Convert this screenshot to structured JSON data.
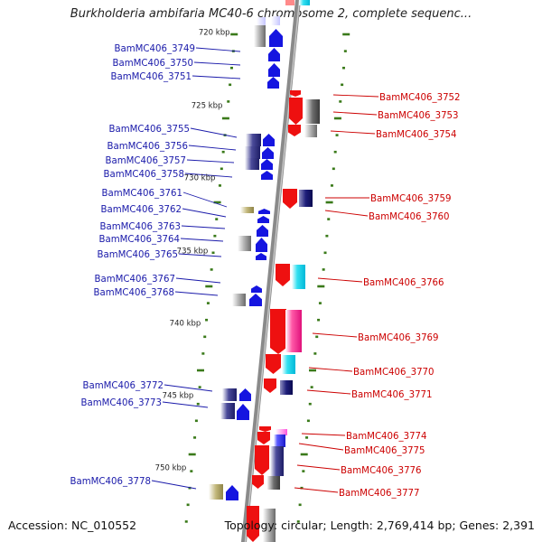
{
  "title": "Burkholderia ambifaria MC40-6 chromosome 2, complete sequenc...",
  "footer": {
    "accession": "Accession: NC_010552",
    "summary": "Topology: circular; Length: 2,769,414 bp; Genes: 2,391"
  },
  "colors": {
    "left_strand_label": "#1a1aaa",
    "right_strand_label": "#cc0000",
    "tick": "#3a7a1a",
    "backbone": "#8a8a8a"
  },
  "scale_labels": [
    "720 kbp",
    "725 kbp",
    "730 kbp",
    "735 kbp",
    "740 kbp",
    "745 kbp",
    "750 kbp"
  ],
  "genes_left": [
    "BamMC406_3749",
    "BamMC406_3750",
    "BamMC406_3751",
    "BamMC406_3755",
    "BamMC406_3756",
    "BamMC406_3757",
    "BamMC406_3758",
    "BamMC406_3761",
    "BamMC406_3762",
    "BamMC406_3763",
    "BamMC406_3764",
    "BamMC406_3765",
    "BamMC406_3767",
    "BamMC406_3768",
    "BamMC406_3772",
    "BamMC406_3773",
    "BamMC406_3778"
  ],
  "genes_right": [
    "BamMC406_3752",
    "BamMC406_3753",
    "BamMC406_3754",
    "BamMC406_3759",
    "BamMC406_3760",
    "BamMC406_3766",
    "BamMC406_3769",
    "BamMC406_3770",
    "BamMC406_3771",
    "BamMC406_3774",
    "BamMC406_3775",
    "BamMC406_3776",
    "BamMC406_3777"
  ]
}
